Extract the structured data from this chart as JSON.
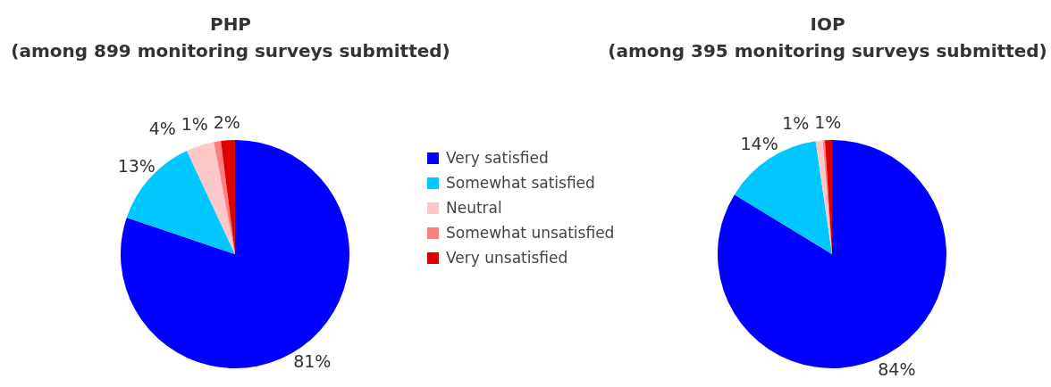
{
  "chart_data": [
    {
      "type": "pie",
      "title": "PHP\n(among 899 monitoring surveys submitted)",
      "categories": [
        "Very satisfied",
        "Somewhat satisfied",
        "Neutral",
        "Somewhat unsatisfied",
        "Very unsatisfied"
      ],
      "values": [
        81,
        13,
        4,
        1,
        2
      ],
      "value_labels": [
        "81%",
        "13%",
        "4%",
        "1%",
        "2%"
      ],
      "colors": [
        "#0000ff",
        "#00c8ff",
        "#ffc8c8",
        "#ff7f7f",
        "#dc0000"
      ],
      "legend": "right"
    },
    {
      "type": "pie",
      "title": "IOP\n(among 395 monitoring surveys submitted)",
      "categories": [
        null,
        null,
        null,
        null,
        null
      ],
      "values": [
        84,
        14,
        1,
        0.3,
        1
      ],
      "value_labels": [
        "84%",
        "14%",
        "1%",
        null,
        "1%"
      ],
      "colors": [
        "#0000ff",
        "#00c8ff",
        "#ffc8c8",
        "#ff7f7f",
        "#dc0000"
      ]
    }
  ]
}
